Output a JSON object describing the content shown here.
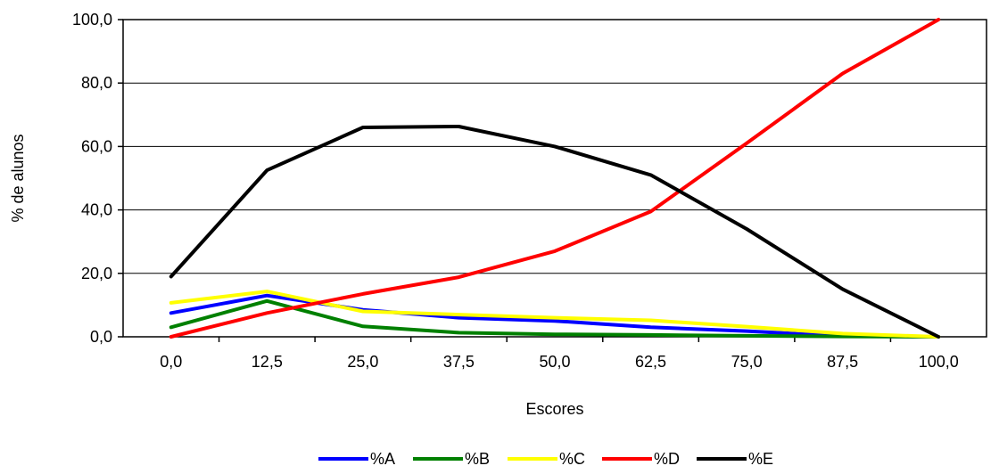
{
  "chart_data": {
    "type": "line",
    "title": "",
    "xlabel": "Escores",
    "ylabel": "% de alunos",
    "categories": [
      "0,0",
      "12,5",
      "25,0",
      "37,5",
      "50,0",
      "62,5",
      "75,0",
      "87,5",
      "100,0"
    ],
    "ylim": [
      0,
      100
    ],
    "yticks": [
      "0,0",
      "20,0",
      "40,0",
      "60,0",
      "80,0",
      "100,0"
    ],
    "grid": true,
    "legend_position": "bottom",
    "series": [
      {
        "name": "%A",
        "color": "#0000ff",
        "values": [
          7.5,
          13.0,
          8.5,
          6.0,
          5.0,
          3.0,
          1.8,
          0.2,
          0.0
        ]
      },
      {
        "name": "%B",
        "color": "#008000",
        "values": [
          3.0,
          11.3,
          3.3,
          1.3,
          0.8,
          0.6,
          0.3,
          0.1,
          0.0
        ]
      },
      {
        "name": "%C",
        "color": "#ffff00",
        "values": [
          10.7,
          14.3,
          8.0,
          7.0,
          6.0,
          5.2,
          3.2,
          1.0,
          0.0
        ]
      },
      {
        "name": "%D",
        "color": "#ff0000",
        "values": [
          0.0,
          7.5,
          13.5,
          18.8,
          27.0,
          39.5,
          61.0,
          83.0,
          100.0
        ]
      },
      {
        "name": "%E",
        "color": "#000000",
        "values": [
          19.0,
          52.5,
          66.0,
          66.3,
          60.0,
          51.0,
          34.0,
          15.0,
          0.0
        ]
      }
    ]
  }
}
